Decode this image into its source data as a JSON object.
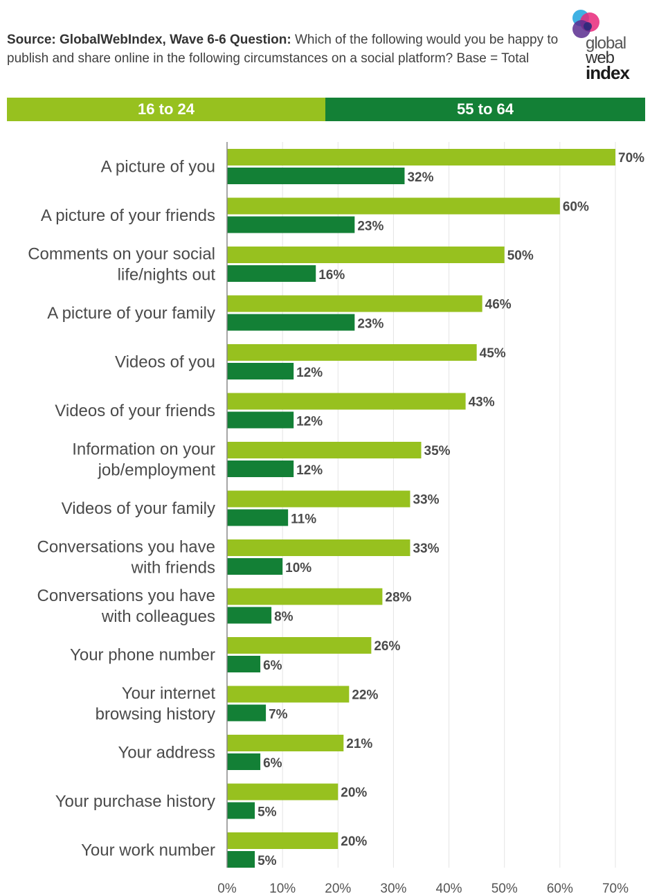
{
  "header": {
    "source_bold": "Source: GlobalWebIndex, Wave 6-6 Question:",
    "question": " Which of the following would you be happy to publish and share online in the following circumstances on a social platform?  Base = Total"
  },
  "logo": {
    "line1": "global",
    "line2": "web",
    "line3": "index"
  },
  "colors": {
    "series_a": "#97c11f",
    "series_b": "#138036",
    "grid": "#e4e4e4",
    "axis": "#888888"
  },
  "chart_data": {
    "type": "bar",
    "orientation": "horizontal",
    "categories": [
      [
        "A picture of you"
      ],
      [
        "A picture of your friends"
      ],
      [
        "Comments on your social",
        "life/nights out"
      ],
      [
        "A picture of your family"
      ],
      [
        "Videos of you"
      ],
      [
        "Videos of your friends"
      ],
      [
        "Information on your",
        "job/employment"
      ],
      [
        "Videos of your family"
      ],
      [
        "Conversations you have",
        "with friends"
      ],
      [
        "Conversations you have",
        "with colleagues"
      ],
      [
        "Your phone number"
      ],
      [
        "Your internet",
        "browsing history"
      ],
      [
        "Your address"
      ],
      [
        "Your purchase history"
      ],
      [
        "Your work number"
      ]
    ],
    "series": [
      {
        "name": "16 to 24",
        "values": [
          70,
          60,
          50,
          46,
          45,
          43,
          35,
          33,
          33,
          28,
          26,
          22,
          21,
          20,
          20
        ]
      },
      {
        "name": "55 to 64",
        "values": [
          32,
          23,
          16,
          23,
          12,
          12,
          12,
          11,
          10,
          8,
          6,
          7,
          6,
          5,
          5
        ]
      }
    ],
    "value_suffix": "%",
    "xticks": [
      "0%",
      "10%",
      "20%",
      "30%",
      "40%",
      "50%",
      "60%",
      "70%"
    ],
    "xlim": [
      0,
      70
    ],
    "grid": true,
    "legend": "top"
  }
}
